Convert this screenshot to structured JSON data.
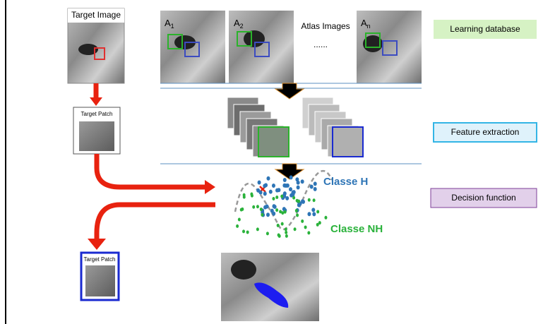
{
  "target": {
    "title": "Target Image",
    "patch": "Target Patch",
    "result_patch": "Target Patch"
  },
  "atlas": {
    "title": "Atlas Images",
    "ellipsis": "......",
    "images": [
      {
        "label": "A",
        "sub": "1"
      },
      {
        "label": "A",
        "sub": "2"
      },
      {
        "label": "A",
        "sub": "n"
      }
    ]
  },
  "classes": {
    "h": "Classe H",
    "nh": "Classe NH"
  },
  "steps": [
    "Learning database",
    "Feature extraction",
    "Decision function"
  ]
}
